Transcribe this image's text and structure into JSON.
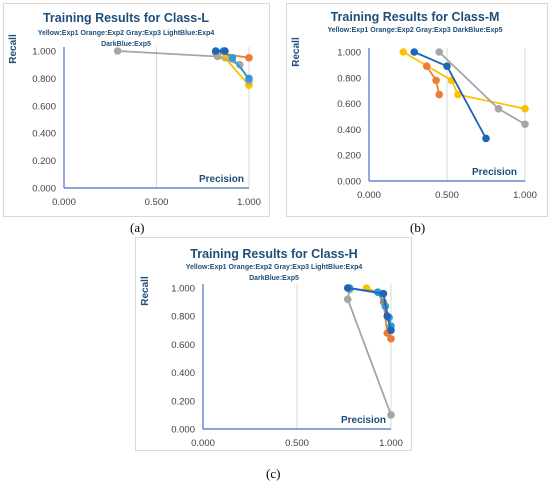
{
  "colors": {
    "Yellow": "#ffc000",
    "Orange": "#ed7d31",
    "Gray": "#a5a5a5",
    "LightBlue": "#2e9bd6",
    "DarkBlue": "#2064b4",
    "title": "#1f4e79",
    "axis": "#4472c4",
    "grid": "#d9d9d9",
    "tick_text": "#404040"
  },
  "captions": [
    "(a)",
    "(b)",
    "(c)"
  ],
  "chart_data": [
    {
      "type": "line",
      "title": "Training Results for Class-L",
      "subtitle_lines": [
        "Yellow:Exp1 Orange:Exp2 Gray:Exp3 LightBlue:Exp4",
        "DarkBlue:Exp5"
      ],
      "xlabel": "Precision",
      "ylabel": "Recall",
      "xlim": [
        0,
        1
      ],
      "ylim": [
        0,
        1
      ],
      "x_ticks": [
        "0.000",
        "0.500",
        "1.000"
      ],
      "y_ticks": [
        "0.000",
        "0.200",
        "0.400",
        "0.600",
        "0.800",
        "1.000"
      ],
      "grid": "vertical",
      "series": [
        {
          "name": "Exp1",
          "color_key": "Yellow",
          "x": [
            0.87,
            1.0
          ],
          "y": [
            0.95,
            0.75
          ]
        },
        {
          "name": "Exp2",
          "color_key": "Orange",
          "x": [
            0.82,
            1.0
          ],
          "y": [
            0.99,
            0.95
          ]
        },
        {
          "name": "Exp3",
          "color_key": "Gray",
          "x": [
            0.29,
            0.83,
            0.95,
            1.0
          ],
          "y": [
            1.0,
            0.96,
            0.9,
            0.78
          ]
        },
        {
          "name": "Exp4",
          "color_key": "LightBlue",
          "x": [
            0.86,
            0.91,
            1.0
          ],
          "y": [
            1.0,
            0.95,
            0.8
          ]
        },
        {
          "name": "Exp5",
          "color_key": "DarkBlue",
          "x": [
            0.82,
            0.87
          ],
          "y": [
            1.0,
            1.0
          ]
        }
      ]
    },
    {
      "type": "line",
      "title": "Training Results for Class-M",
      "subtitle_lines": [
        "Yellow:Exp1 Orange:Exp2 Gray:Exp3 DarkBlue:Exp5"
      ],
      "xlabel": "Precision",
      "ylabel": "Recall",
      "xlim": [
        0,
        1
      ],
      "ylim": [
        0,
        1
      ],
      "x_ticks": [
        "0.000",
        "0.500",
        "1.000"
      ],
      "y_ticks": [
        "0.000",
        "0.200",
        "0.400",
        "0.600",
        "0.800",
        "1.000"
      ],
      "grid": "vertical",
      "series": [
        {
          "name": "Exp1",
          "color_key": "Yellow",
          "x": [
            0.22,
            0.53,
            0.57,
            1.0
          ],
          "y": [
            1.0,
            0.78,
            0.67,
            0.56
          ]
        },
        {
          "name": "Exp2",
          "color_key": "Orange",
          "x": [
            0.37,
            0.43,
            0.45
          ],
          "y": [
            0.89,
            0.78,
            0.67
          ]
        },
        {
          "name": "Exp3",
          "color_key": "Gray",
          "x": [
            0.45,
            0.83,
            1.0
          ],
          "y": [
            1.0,
            0.56,
            0.44
          ]
        },
        {
          "name": "Exp5",
          "color_key": "DarkBlue",
          "x": [
            0.29,
            0.5,
            0.75
          ],
          "y": [
            1.0,
            0.89,
            0.33
          ]
        }
      ]
    },
    {
      "type": "line",
      "title": "Training Results for Class-H",
      "subtitle_lines": [
        "Yellow:Exp1 Orange:Exp2 Gray:Exp3 LightBlue:Exp4",
        "DarkBlue:Exp5"
      ],
      "xlabel": "Precision",
      "ylabel": "Recall",
      "xlim": [
        0,
        1
      ],
      "ylim": [
        0,
        1
      ],
      "x_ticks": [
        "0.000",
        "0.500",
        "1.000"
      ],
      "y_ticks": [
        "0.000",
        "0.200",
        "0.400",
        "0.600",
        "0.800",
        "1.000"
      ],
      "grid": "vertical",
      "series": [
        {
          "name": "Exp1",
          "color_key": "Yellow",
          "x": [
            0.87,
            0.93,
            0.97
          ],
          "y": [
            1.0,
            0.97,
            0.87
          ]
        },
        {
          "name": "Exp2",
          "color_key": "Orange",
          "x": [
            0.96,
            0.98,
            1.0
          ],
          "y": [
            0.9,
            0.68,
            0.64
          ]
        },
        {
          "name": "Exp3",
          "color_key": "Gray",
          "x": [
            0.77,
            0.78,
            0.77,
            1.0
          ],
          "y": [
            1.0,
            0.99,
            0.92,
            0.1
          ]
        },
        {
          "name": "Exp4",
          "color_key": "LightBlue",
          "x": [
            0.78,
            0.93,
            0.97,
            0.99,
            1.0
          ],
          "y": [
            1.0,
            0.97,
            0.87,
            0.79,
            0.73
          ]
        },
        {
          "name": "Exp5",
          "color_key": "DarkBlue",
          "x": [
            0.77,
            0.96,
            0.98,
            1.0
          ],
          "y": [
            1.0,
            0.96,
            0.8,
            0.7
          ]
        }
      ]
    }
  ]
}
